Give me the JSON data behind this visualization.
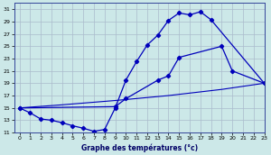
{
  "title": "Graphe des températures (°c)",
  "bg_color": "#cce8e8",
  "grid_color": "#aabbcc",
  "line_color": "#0000bb",
  "xlim": [
    -0.5,
    23
  ],
  "ylim": [
    11,
    32
  ],
  "xticks": [
    0,
    1,
    2,
    3,
    4,
    5,
    6,
    7,
    8,
    9,
    10,
    11,
    12,
    13,
    14,
    15,
    16,
    17,
    18,
    19,
    20,
    21,
    22,
    23
  ],
  "yticks": [
    11,
    13,
    15,
    17,
    19,
    21,
    23,
    25,
    27,
    29,
    31
  ],
  "line1_x": [
    0,
    1,
    2,
    3,
    4,
    5,
    6,
    7,
    8,
    9,
    10,
    11,
    12,
    13,
    14,
    15,
    16,
    17,
    18,
    23
  ],
  "line1_y": [
    15,
    14.2,
    13.2,
    13.0,
    12.6,
    12.1,
    11.7,
    11.2,
    11.5,
    15.0,
    19.5,
    22.5,
    25.2,
    26.8,
    29.2,
    30.4,
    30.1,
    30.6,
    29.3,
    19.0
  ],
  "line2_x": [
    0,
    9,
    10,
    13,
    14,
    15,
    19,
    20,
    23
  ],
  "line2_y": [
    15,
    15.2,
    16.5,
    19.5,
    20.2,
    23.2,
    25.0,
    21.0,
    19.0
  ],
  "line3_x": [
    0,
    4,
    9,
    14,
    19,
    23
  ],
  "line3_y": [
    15.0,
    15.5,
    16.2,
    17.0,
    18.0,
    19.0
  ]
}
